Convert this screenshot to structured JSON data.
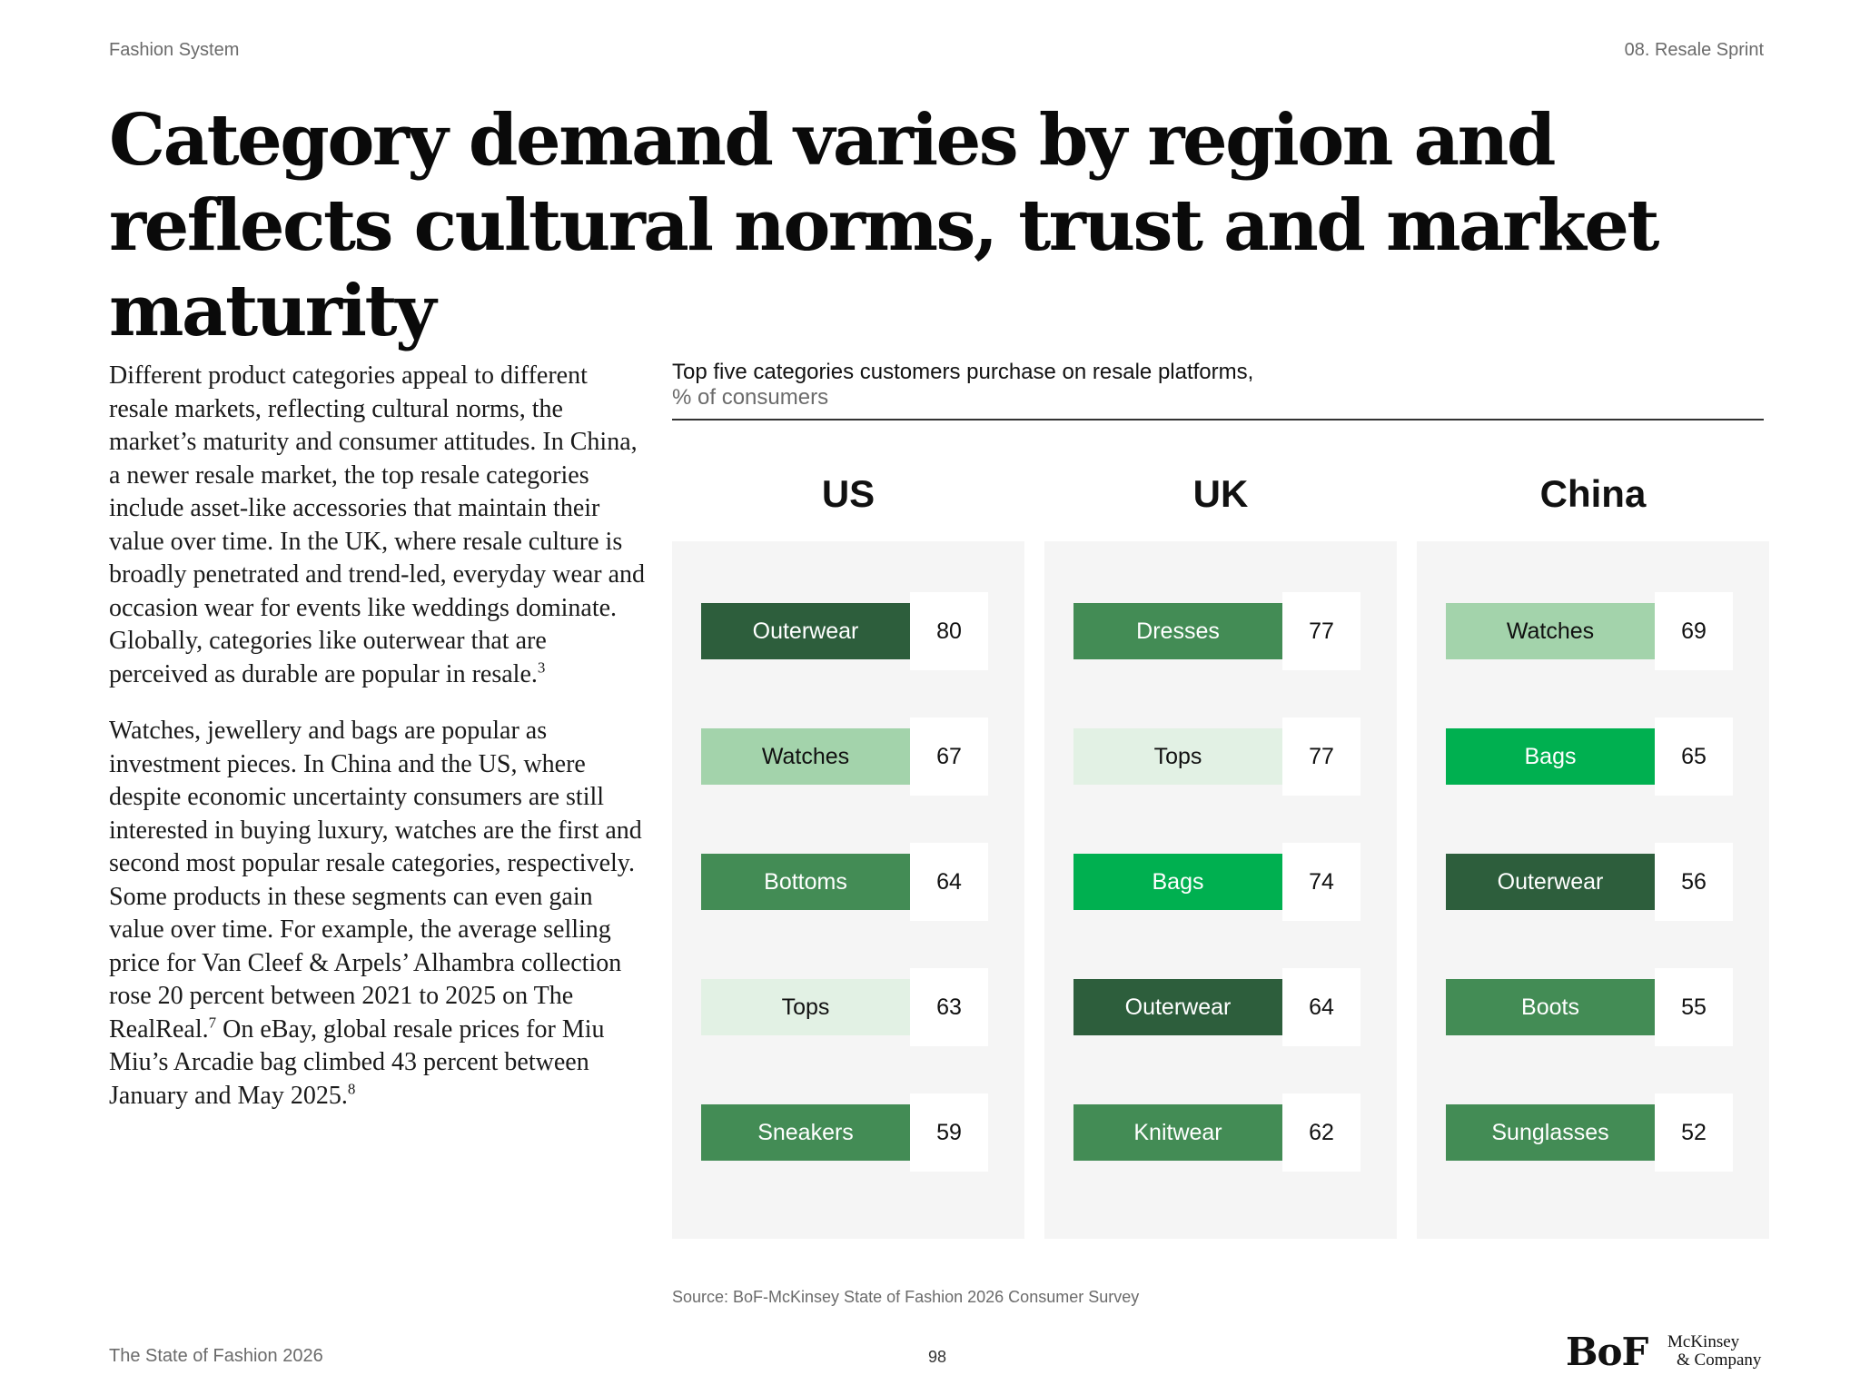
{
  "header": {
    "left": "Fashion System",
    "right": "08. Resale Sprint"
  },
  "title": "Category demand varies by region and reflects cultural norms, trust and market maturity",
  "body": {
    "p1": "Different product categories appeal to different resale markets, reflecting cultural norms, the market’s maturity and consumer attitudes. In China, a newer resale market, the top resale categories include asset-like accessories that maintain their value over time. In the UK, where resale culture is broadly penetrated and trend-led, everyday wear and occasion wear for events like weddings dominate. Globally, categories like outerwear that are perceived as durable are popular in resale.",
    "p1_ref": "3",
    "p2a": "Watches, jewellery and bags are popular as investment pieces. In China and the US, where despite economic uncertainty consumers are still interested in buying luxury, watches are the first and second most popular resale categories, respectively. Some products in these segments can even gain value over time. For example, the average selling price for Van Cleef & Arpels’ Alhambra collection rose 20 percent between 2021 to 2025 on The RealReal.",
    "p2a_ref": "7",
    "p2b": " On eBay, global resale prices for Miu Miu’s Arcadie bag climbed 43 percent between January and May 2025.",
    "p2b_ref": "8"
  },
  "chart_data": {
    "type": "table",
    "title": "Top five categories customers purchase on resale platforms,",
    "subtitle": "% of consumers",
    "regions": [
      {
        "name": "US",
        "items": [
          {
            "category": "Outerwear",
            "value": 80,
            "color": "#2d5e3c",
            "text_color": "#ffffff"
          },
          {
            "category": "Watches",
            "value": 67,
            "color": "#a3d3ab",
            "text_color": "#111111"
          },
          {
            "category": "Bottoms",
            "value": 64,
            "color": "#438c55",
            "text_color": "#ffffff"
          },
          {
            "category": "Tops",
            "value": 63,
            "color": "#e2f1e4",
            "text_color": "#111111"
          },
          {
            "category": "Sneakers",
            "value": 59,
            "color": "#438c55",
            "text_color": "#ffffff"
          }
        ]
      },
      {
        "name": "UK",
        "items": [
          {
            "category": "Dresses",
            "value": 77,
            "color": "#438c55",
            "text_color": "#ffffff"
          },
          {
            "category": "Tops",
            "value": 77,
            "color": "#e2f1e4",
            "text_color": "#111111"
          },
          {
            "category": "Bags",
            "value": 74,
            "color": "#00b050",
            "text_color": "#ffffff"
          },
          {
            "category": "Outerwear",
            "value": 64,
            "color": "#2d5e3c",
            "text_color": "#ffffff"
          },
          {
            "category": "Knitwear",
            "value": 62,
            "color": "#438c55",
            "text_color": "#ffffff"
          }
        ]
      },
      {
        "name": "China",
        "items": [
          {
            "category": "Watches",
            "value": 69,
            "color": "#a3d3ab",
            "text_color": "#111111"
          },
          {
            "category": "Bags",
            "value": 65,
            "color": "#00b050",
            "text_color": "#ffffff"
          },
          {
            "category": "Outerwear",
            "value": 56,
            "color": "#2d5e3c",
            "text_color": "#ffffff"
          },
          {
            "category": "Boots",
            "value": 55,
            "color": "#438c55",
            "text_color": "#ffffff"
          },
          {
            "category": "Sunglasses",
            "value": 52,
            "color": "#438c55",
            "text_color": "#ffffff"
          }
        ]
      }
    ]
  },
  "source": "Source: BoF-McKinsey State of Fashion 2026 Consumer Survey",
  "footer": {
    "left": "The State of Fashion 2026",
    "page": "98",
    "logo_bof": "BoF",
    "logo_mck_line1": "McKinsey",
    "logo_mck_line2": "& Company"
  }
}
